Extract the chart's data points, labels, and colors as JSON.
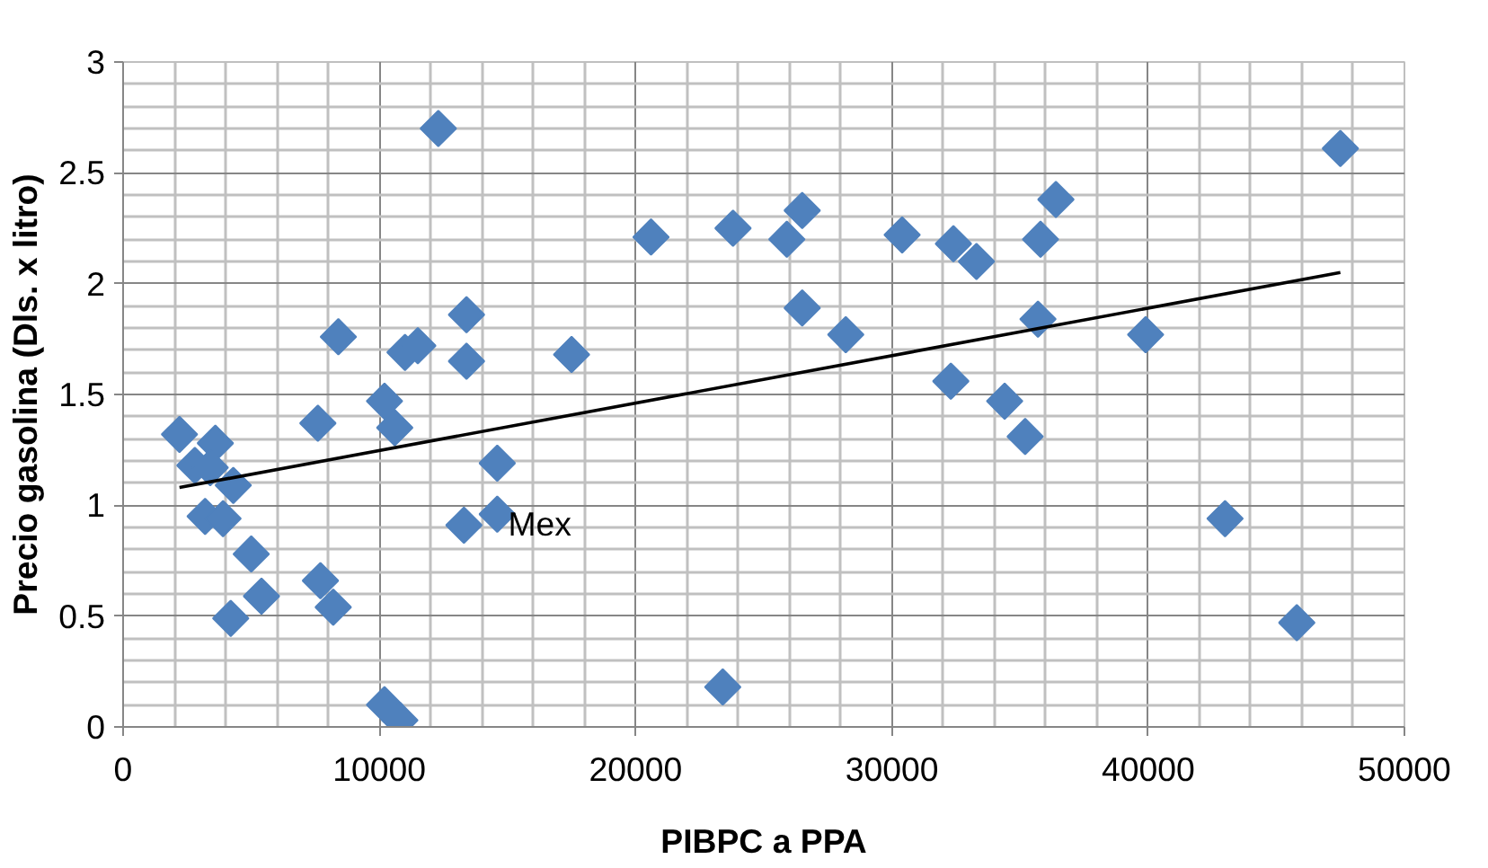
{
  "chart_data": {
    "type": "scatter",
    "xlabel": "PIBPC a PPA",
    "ylabel": "Precio gasolina (Dls. x litro)",
    "xlim": [
      0,
      50000
    ],
    "ylim": [
      0,
      3
    ],
    "xticks": [
      0,
      10000,
      20000,
      30000,
      40000,
      50000
    ],
    "yticks": [
      0,
      0.5,
      1,
      1.5,
      2,
      2.5,
      3
    ],
    "grid": true,
    "series": [
      {
        "color": "#4f81bd",
        "marker": "diamond",
        "x": [
          2200,
          3600,
          2800,
          3400,
          4300,
          3200,
          3900,
          5000,
          4200,
          5400,
          7600,
          7700,
          8200,
          8400,
          10200,
          10600,
          10200,
          10800,
          11000,
          11500,
          12300,
          13400,
          13400,
          13300,
          14600,
          14600,
          17500,
          20600,
          23400,
          23800,
          25900,
          26500,
          26500,
          28200,
          30400,
          32400,
          33300,
          35800,
          36400,
          35700,
          32300,
          34400,
          35200,
          39900,
          43000,
          45800,
          47500
        ],
        "values": [
          1.32,
          1.28,
          1.18,
          1.17,
          1.09,
          0.95,
          0.94,
          0.78,
          0.49,
          0.59,
          1.37,
          0.66,
          0.54,
          1.76,
          1.47,
          1.35,
          0.1,
          0.03,
          1.69,
          1.72,
          2.7,
          1.86,
          1.65,
          0.91,
          1.19,
          0.96,
          1.68,
          2.21,
          0.18,
          2.25,
          2.2,
          2.33,
          1.89,
          1.77,
          2.22,
          2.18,
          2.1,
          2.2,
          2.38,
          1.84,
          1.56,
          1.47,
          1.31,
          1.77,
          0.94,
          0.47,
          2.61
        ]
      },
      {
        "type": "line",
        "marker": "none",
        "color": "#000000",
        "x": [
          2200,
          47500
        ],
        "values": [
          1.08,
          2.05
        ]
      }
    ],
    "annotations": [
      {
        "text": "Mex",
        "x": 14600,
        "y": 0.96
      }
    ]
  }
}
